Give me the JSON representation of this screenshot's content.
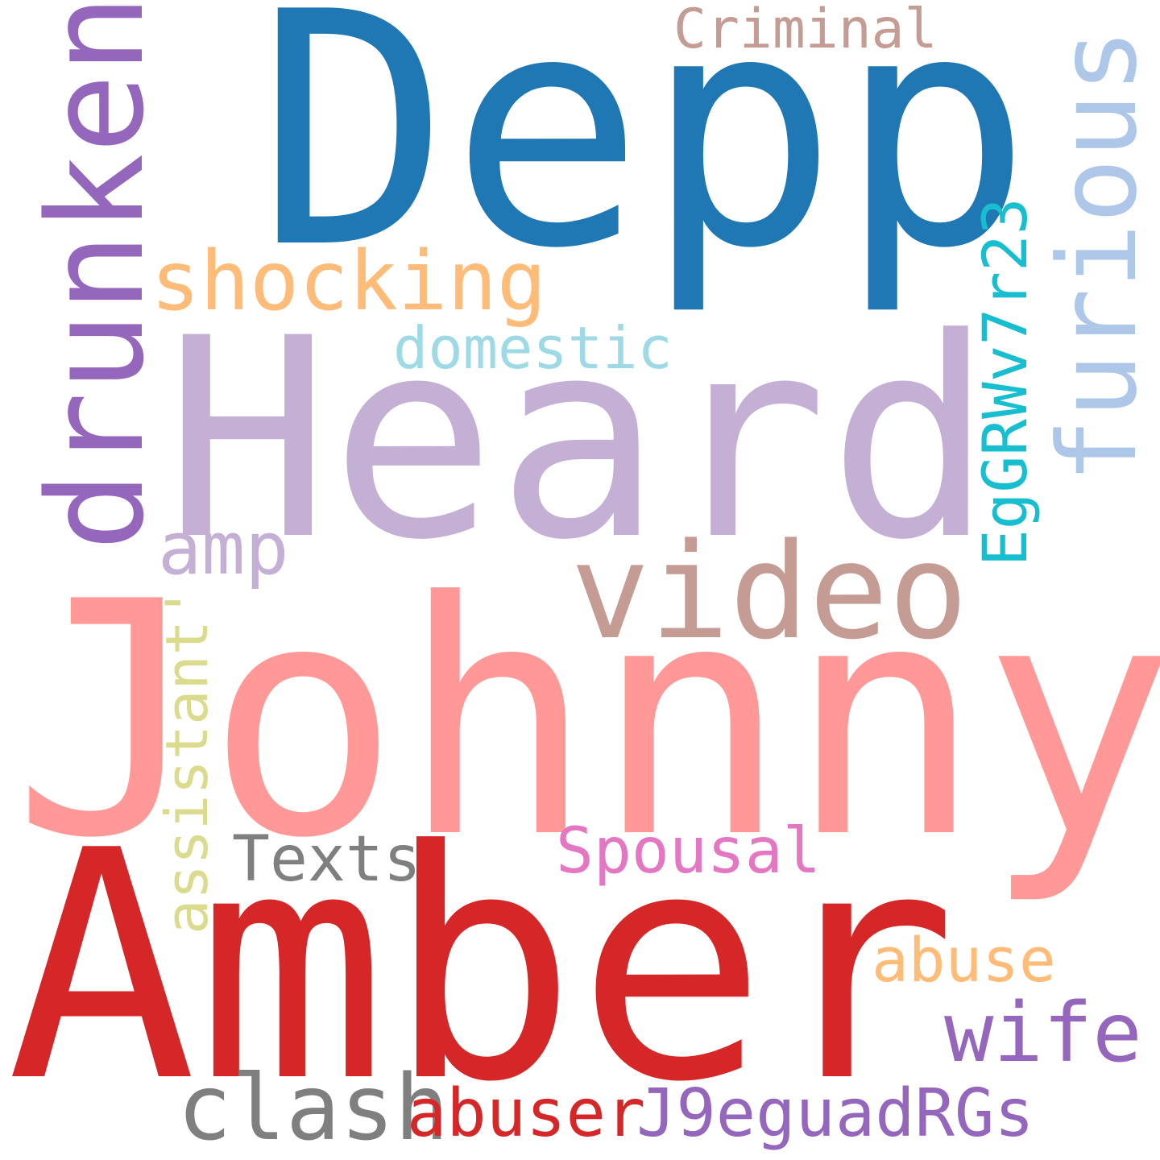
{
  "word_cloud": {
    "background": "#ffffff",
    "words": {
      "depp": {
        "text": "Depp",
        "color": "#1f77b4"
      },
      "heard": {
        "text": "Heard",
        "color": "#c5b0d5"
      },
      "johnny": {
        "text": "Johnny",
        "color": "#ff9896"
      },
      "amber": {
        "text": "Amber",
        "color": "#d62728"
      },
      "video": {
        "text": "video",
        "color": "#c49c94"
      },
      "drunken": {
        "text": "drunken",
        "color": "#9467bd"
      },
      "furious": {
        "text": "furious",
        "color": "#aec7e8"
      },
      "shocking": {
        "text": "shocking",
        "color": "#ffbb78"
      },
      "domestic": {
        "text": "domestic",
        "color": "#9edae5"
      },
      "egrwv7r23": {
        "text": "EgGRWv7r23",
        "color": "#17becf"
      },
      "amp": {
        "text": "amp",
        "color": "#c5b0d5"
      },
      "criminal": {
        "text": "Criminal",
        "color": "#c49c94"
      },
      "assistant": {
        "text": "assistant'",
        "color": "#dbdb8d"
      },
      "texts": {
        "text": "Texts",
        "color": "#7f7f7f"
      },
      "spousal": {
        "text": "Spousal",
        "color": "#e377c2"
      },
      "abuse": {
        "text": "abuse",
        "color": "#ffbb78"
      },
      "wife": {
        "text": "wife",
        "color": "#9467bd"
      },
      "clash": {
        "text": "clash",
        "color": "#7f7f7f"
      },
      "abuser": {
        "text": "abuser",
        "color": "#d62728"
      },
      "j9eguadrgs": {
        "text": "J9eguadRGs",
        "color": "#9467bd"
      }
    }
  }
}
